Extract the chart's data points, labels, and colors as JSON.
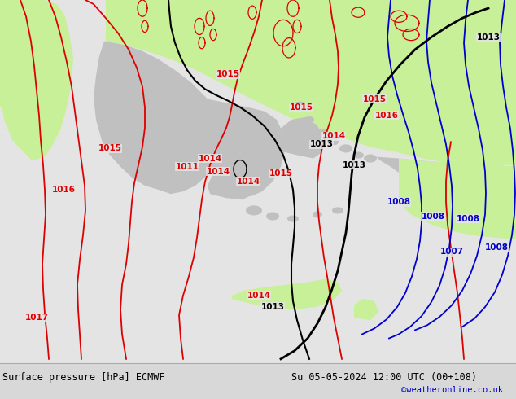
{
  "title_left": "Surface pressure [hPa] ECMWF",
  "title_right": "Su 05-05-2024 12:00 UTC (00+108)",
  "credit": "©weatheronline.co.uk",
  "bg_color": "#e4e4e4",
  "land_green_color": "#c8f098",
  "land_gray_color": "#c0c0c0",
  "sea_color": "#e4e4e4",
  "bottom_bar_color": "#d8d8d8",
  "red_color": "#dd0000",
  "black_color": "#000000",
  "blue_color": "#0000cc",
  "figsize": [
    6.34,
    4.9
  ],
  "dpi": 100
}
